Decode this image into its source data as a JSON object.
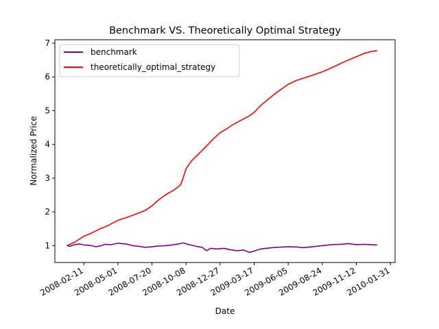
{
  "chart_data": {
    "type": "line",
    "title": "Benchmark VS. Theoretically Optimal Strategy",
    "xlabel": "Date",
    "ylabel": "Normalized Price",
    "x_ticks": [
      "2008-02-11",
      "2008-05-01",
      "2008-07-20",
      "2008-10-08",
      "2008-12-27",
      "2009-03-17",
      "2009-06-05",
      "2009-08-24",
      "2009-11-12",
      "2010-01-31"
    ],
    "y_ticks": [
      1,
      2,
      3,
      4,
      5,
      6,
      7
    ],
    "xlim": [
      "2007-12-05",
      "2010-02-11"
    ],
    "ylim": [
      0.5,
      7.1
    ],
    "grid": false,
    "legend_position": "top-left",
    "series": [
      {
        "name": "benchmark",
        "color": "#800080",
        "points": [
          [
            "2008-01-02",
            1.0
          ],
          [
            "2008-01-10",
            0.98
          ],
          [
            "2008-01-20",
            1.03
          ],
          [
            "2008-02-01",
            1.05
          ],
          [
            "2008-02-11",
            1.02
          ],
          [
            "2008-02-25",
            1.01
          ],
          [
            "2008-03-10",
            0.97
          ],
          [
            "2008-03-20",
            0.99
          ],
          [
            "2008-04-01",
            1.04
          ],
          [
            "2008-04-15",
            1.03
          ],
          [
            "2008-05-01",
            1.07
          ],
          [
            "2008-05-20",
            1.05
          ],
          [
            "2008-06-05",
            1.0
          ],
          [
            "2008-06-20",
            0.98
          ],
          [
            "2008-07-05",
            0.95
          ],
          [
            "2008-07-20",
            0.97
          ],
          [
            "2008-08-05",
            0.99
          ],
          [
            "2008-08-20",
            1.0
          ],
          [
            "2008-09-05",
            1.02
          ],
          [
            "2008-09-20",
            1.05
          ],
          [
            "2008-10-01",
            1.08
          ],
          [
            "2008-10-15",
            1.03
          ],
          [
            "2008-11-01",
            0.98
          ],
          [
            "2008-11-15",
            0.95
          ],
          [
            "2008-11-25",
            0.85
          ],
          [
            "2008-12-05",
            0.92
          ],
          [
            "2008-12-20",
            0.9
          ],
          [
            "2009-01-05",
            0.92
          ],
          [
            "2009-01-20",
            0.88
          ],
          [
            "2009-02-05",
            0.85
          ],
          [
            "2009-02-20",
            0.87
          ],
          [
            "2009-03-06",
            0.8
          ],
          [
            "2009-03-17",
            0.84
          ],
          [
            "2009-04-01",
            0.9
          ],
          [
            "2009-04-20",
            0.93
          ],
          [
            "2009-05-10",
            0.95
          ],
          [
            "2009-06-05",
            0.97
          ],
          [
            "2009-06-25",
            0.96
          ],
          [
            "2009-07-10",
            0.94
          ],
          [
            "2009-08-01",
            0.97
          ],
          [
            "2009-08-24",
            1.0
          ],
          [
            "2009-09-15",
            1.03
          ],
          [
            "2009-10-05",
            1.04
          ],
          [
            "2009-10-25",
            1.06
          ],
          [
            "2009-11-12",
            1.03
          ],
          [
            "2009-12-01",
            1.04
          ],
          [
            "2009-12-15",
            1.03
          ],
          [
            "2009-12-31",
            1.02
          ]
        ]
      },
      {
        "name": "theoretically_optimal_strategy",
        "color": "#ff0000",
        "points": [
          [
            "2008-01-02",
            1.0
          ],
          [
            "2008-01-20",
            1.1
          ],
          [
            "2008-02-11",
            1.28
          ],
          [
            "2008-03-01",
            1.38
          ],
          [
            "2008-03-20",
            1.5
          ],
          [
            "2008-04-05",
            1.58
          ],
          [
            "2008-05-01",
            1.75
          ],
          [
            "2008-05-25",
            1.85
          ],
          [
            "2008-06-15",
            1.95
          ],
          [
            "2008-07-05",
            2.05
          ],
          [
            "2008-07-20",
            2.18
          ],
          [
            "2008-08-01",
            2.32
          ],
          [
            "2008-08-20",
            2.5
          ],
          [
            "2008-09-10",
            2.65
          ],
          [
            "2008-09-25",
            2.8
          ],
          [
            "2008-10-01",
            3.0
          ],
          [
            "2008-10-08",
            3.28
          ],
          [
            "2008-10-20",
            3.5
          ],
          [
            "2008-11-05",
            3.7
          ],
          [
            "2008-11-25",
            3.95
          ],
          [
            "2008-12-10",
            4.15
          ],
          [
            "2008-12-27",
            4.35
          ],
          [
            "2009-01-10",
            4.45
          ],
          [
            "2009-01-25",
            4.58
          ],
          [
            "2009-02-15",
            4.72
          ],
          [
            "2009-03-06",
            4.85
          ],
          [
            "2009-03-17",
            4.95
          ],
          [
            "2009-04-01",
            5.15
          ],
          [
            "2009-04-20",
            5.35
          ],
          [
            "2009-05-10",
            5.55
          ],
          [
            "2009-06-05",
            5.78
          ],
          [
            "2009-06-25",
            5.9
          ],
          [
            "2009-07-20",
            6.0
          ],
          [
            "2009-08-24",
            6.15
          ],
          [
            "2009-09-20",
            6.3
          ],
          [
            "2009-10-15",
            6.45
          ],
          [
            "2009-11-12",
            6.6
          ],
          [
            "2009-12-01",
            6.7
          ],
          [
            "2009-12-20",
            6.76
          ],
          [
            "2009-12-31",
            6.78
          ]
        ]
      }
    ]
  }
}
